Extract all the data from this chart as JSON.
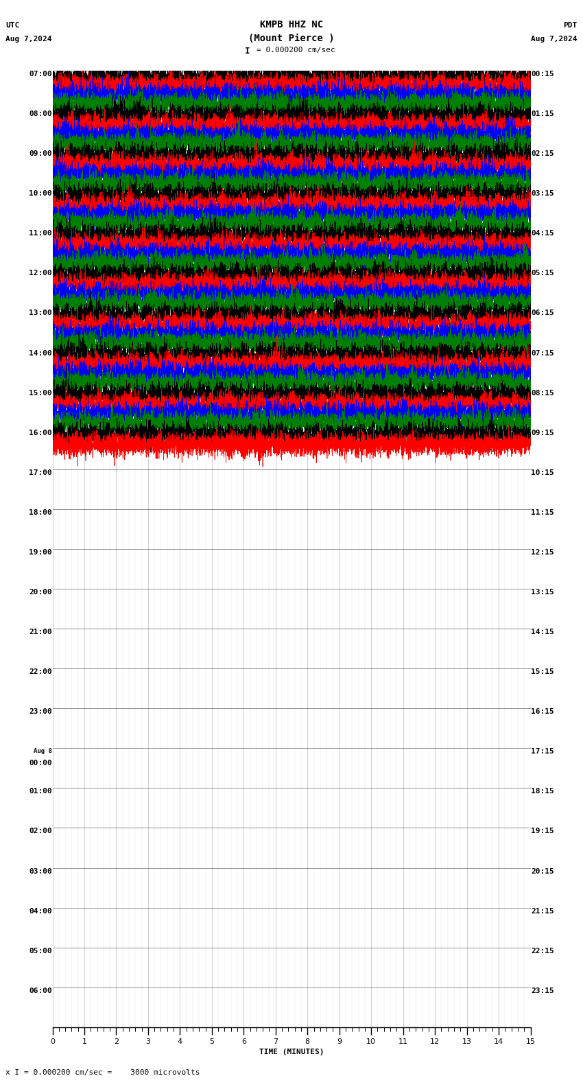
{
  "title_line1": "KMPB HHZ NC",
  "title_line2": "(Mount Pierce )",
  "scale_text": "= 0.000200 cm/sec",
  "utc_label": "UTC",
  "pdt_label": "PDT",
  "date_left": "Aug 7,2024",
  "date_right": "Aug 7,2024",
  "xlabel": "TIME (MINUTES)",
  "footer_text": "x I = 0.000200 cm/sec =    3000 microvolts",
  "left_times_utc": [
    "07:00",
    "08:00",
    "09:00",
    "10:00",
    "11:00",
    "12:00",
    "13:00",
    "14:00",
    "15:00",
    "16:00",
    "17:00",
    "18:00",
    "19:00",
    "20:00",
    "21:00",
    "22:00",
    "23:00",
    "Aug 8\n00:00",
    "01:00",
    "02:00",
    "03:00",
    "04:00",
    "05:00",
    "06:00"
  ],
  "right_times_pdt": [
    "00:15",
    "01:15",
    "02:15",
    "03:15",
    "04:15",
    "05:15",
    "06:15",
    "07:15",
    "08:15",
    "09:15",
    "10:15",
    "11:15",
    "12:15",
    "13:15",
    "14:15",
    "15:15",
    "16:15",
    "17:15",
    "18:15",
    "19:15",
    "20:15",
    "21:15",
    "22:15",
    "23:15"
  ],
  "num_rows": 24,
  "signal_colors": [
    "black",
    "red",
    "blue",
    "green"
  ],
  "bg_color": "white",
  "active_rows": 10,
  "last_row_partial": true,
  "xmin": 0,
  "xmax": 15,
  "title_fontsize": 10,
  "label_fontsize": 8,
  "tick_fontsize": 8,
  "trace_lw": 0.5
}
